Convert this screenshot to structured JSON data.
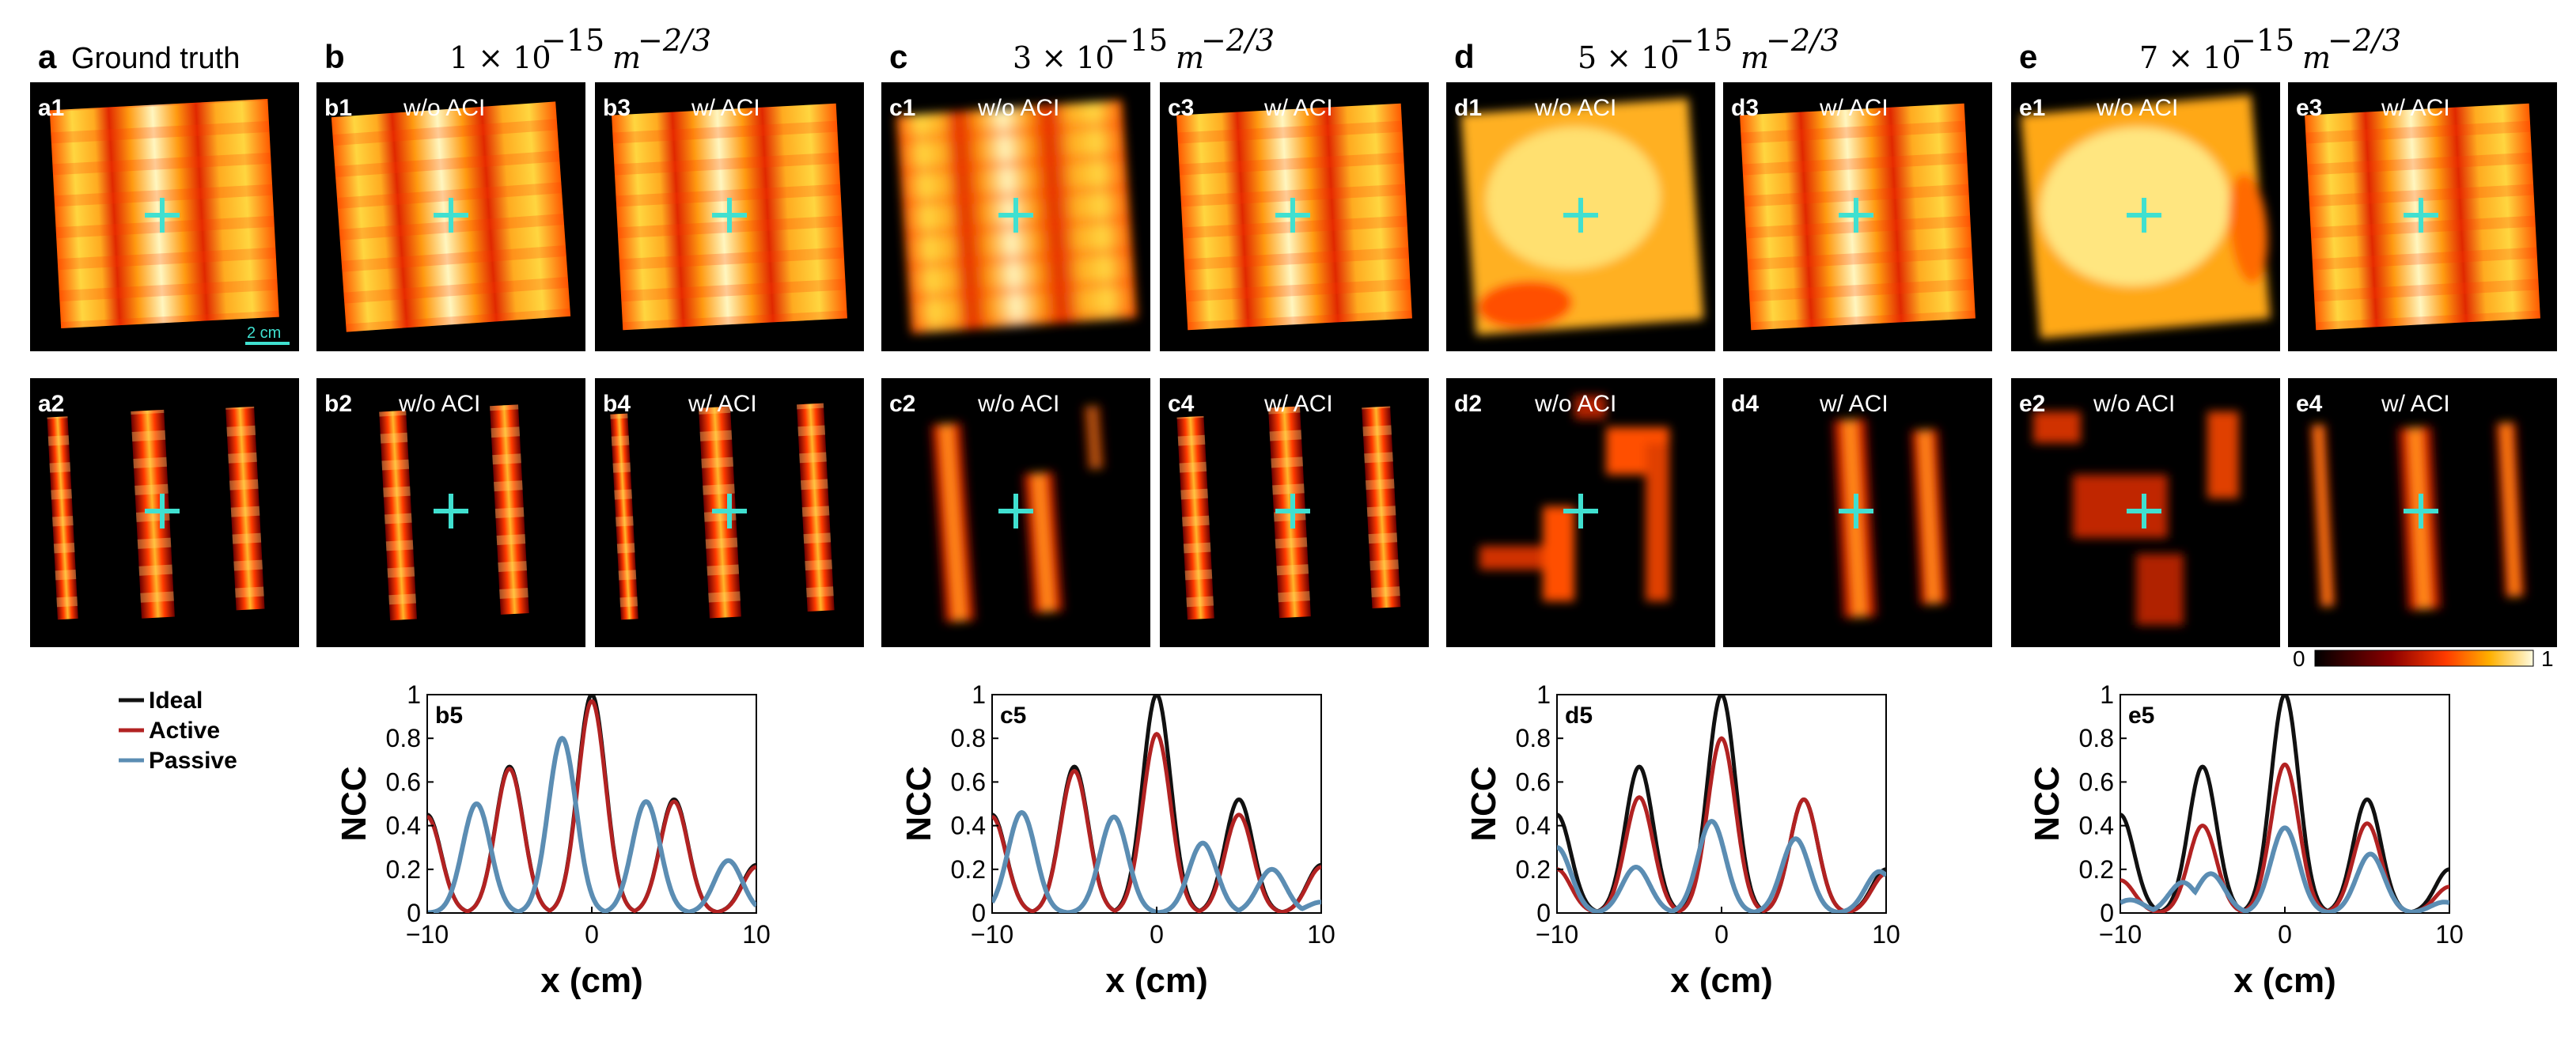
{
  "figure": {
    "panel_a": {
      "letter": "a",
      "title": "Ground truth",
      "tags": [
        "a1",
        "a2"
      ],
      "scale_bar": "2 cm"
    },
    "groups": [
      {
        "letter": "b",
        "title": "1 × 10",
        "exponent": "−15",
        "unit": "m",
        "unit_exp": "−2/3",
        "tags": [
          "b1",
          "b3",
          "b2",
          "b4"
        ],
        "plot_tag": "b5"
      },
      {
        "letter": "c",
        "title": "3 × 10",
        "exponent": "−15",
        "unit": "m",
        "unit_exp": "−2/3",
        "tags": [
          "c1",
          "c3",
          "c2",
          "c4"
        ],
        "plot_tag": "c5"
      },
      {
        "letter": "d",
        "title": "5 × 10",
        "exponent": "−15",
        "unit": "m",
        "unit_exp": "−2/3",
        "tags": [
          "d1",
          "d3",
          "d2",
          "d4"
        ],
        "plot_tag": "d5"
      },
      {
        "letter": "e",
        "title": "7 × 10",
        "exponent": "−15",
        "unit": "m",
        "unit_exp": "−2/3",
        "tags": [
          "e1",
          "e3",
          "e2",
          "e4"
        ],
        "plot_tag": "e5"
      }
    ],
    "without_label": "w/o ACI",
    "with_label": "w/ ACI",
    "colorbar": {
      "min": "0",
      "max": "1"
    },
    "legend": [
      {
        "name": "Ideal",
        "color": "#111111"
      },
      {
        "name": "Active",
        "color": "#b22222"
      },
      {
        "name": "Passive",
        "color": "#5b8db3"
      }
    ]
  },
  "chart_data": [
    {
      "type": "line",
      "title": "b5",
      "xlabel": "x (cm)",
      "ylabel": "NCC",
      "xlim": [
        -10,
        10
      ],
      "ylim": [
        0,
        1
      ],
      "xticks": [
        "-10",
        "0",
        "10"
      ],
      "yticks": [
        "0",
        "0.2",
        "0.4",
        "0.6",
        "0.8",
        "1"
      ],
      "series": [
        {
          "name": "Ideal",
          "peaks": [
            [
              -10,
              0.45
            ],
            [
              -5,
              0.67
            ],
            [
              0,
              1.0
            ],
            [
              5,
              0.52
            ],
            [
              10,
              0.22
            ]
          ]
        },
        {
          "name": "Active",
          "peaks": [
            [
              -10,
              0.44
            ],
            [
              -5,
              0.66
            ],
            [
              0,
              0.97
            ],
            [
              5,
              0.51
            ],
            [
              10,
              0.21
            ]
          ]
        },
        {
          "name": "Passive",
          "peaks": [
            [
              -7,
              0.5
            ],
            [
              -1.8,
              0.8
            ],
            [
              3.3,
              0.51
            ],
            [
              8.3,
              0.24
            ]
          ]
        }
      ]
    },
    {
      "type": "line",
      "title": "c5",
      "xlabel": "x (cm)",
      "ylabel": "NCC",
      "xlim": [
        -10,
        10
      ],
      "ylim": [
        0,
        1
      ],
      "xticks": [
        "-10",
        "0",
        "10"
      ],
      "yticks": [
        "0",
        "0.2",
        "0.4",
        "0.6",
        "0.8",
        "1"
      ],
      "series": [
        {
          "name": "Ideal",
          "peaks": [
            [
              -10,
              0.45
            ],
            [
              -5,
              0.67
            ],
            [
              0,
              1.0
            ],
            [
              5,
              0.52
            ],
            [
              10,
              0.22
            ]
          ]
        },
        {
          "name": "Active",
          "peaks": [
            [
              -10,
              0.44
            ],
            [
              -5,
              0.65
            ],
            [
              0,
              0.82
            ],
            [
              5,
              0.45
            ],
            [
              10,
              0.21
            ]
          ]
        },
        {
          "name": "Passive",
          "peaks": [
            [
              -8.2,
              0.46
            ],
            [
              -2.6,
              0.44
            ],
            [
              2.8,
              0.32
            ],
            [
              7.0,
              0.2
            ],
            [
              10,
              0.05
            ]
          ]
        }
      ]
    },
    {
      "type": "line",
      "title": "d5",
      "xlabel": "x (cm)",
      "ylabel": "NCC",
      "xlim": [
        -10,
        10
      ],
      "ylim": [
        0,
        1
      ],
      "xticks": [
        "-10",
        "0",
        "10"
      ],
      "yticks": [
        "0",
        "0.2",
        "0.4",
        "0.6",
        "0.8",
        "1"
      ],
      "series": [
        {
          "name": "Ideal",
          "peaks": [
            [
              -10,
              0.45
            ],
            [
              -5,
              0.67
            ],
            [
              0,
              1.0
            ],
            [
              5,
              0.52
            ],
            [
              10,
              0.2
            ]
          ]
        },
        {
          "name": "Active",
          "peaks": [
            [
              -10,
              0.2
            ],
            [
              -5,
              0.53
            ],
            [
              0,
              0.8
            ],
            [
              5,
              0.52
            ],
            [
              10,
              0.18
            ]
          ]
        },
        {
          "name": "Passive",
          "peaks": [
            [
              -10,
              0.3
            ],
            [
              -5.2,
              0.21
            ],
            [
              -0.6,
              0.42
            ],
            [
              4.5,
              0.34
            ],
            [
              9.6,
              0.19
            ]
          ]
        }
      ]
    },
    {
      "type": "line",
      "title": "e5",
      "xlabel": "x (cm)",
      "ylabel": "NCC",
      "xlim": [
        -10,
        10
      ],
      "ylim": [
        0,
        1
      ],
      "xticks": [
        "-10",
        "0",
        "10"
      ],
      "yticks": [
        "0",
        "0.2",
        "0.4",
        "0.6",
        "0.8",
        "1"
      ],
      "series": [
        {
          "name": "Ideal",
          "peaks": [
            [
              -10,
              0.45
            ],
            [
              -5,
              0.67
            ],
            [
              0,
              1.0
            ],
            [
              5,
              0.52
            ],
            [
              10,
              0.2
            ]
          ]
        },
        {
          "name": "Active",
          "peaks": [
            [
              -10,
              0.15
            ],
            [
              -5,
              0.4
            ],
            [
              0,
              0.68
            ],
            [
              5,
              0.41
            ],
            [
              10,
              0.12
            ]
          ]
        },
        {
          "name": "Passive",
          "peaks": [
            [
              -9.4,
              0.06
            ],
            [
              -6.2,
              0.14
            ],
            [
              -4.5,
              0.18
            ],
            [
              0,
              0.39
            ],
            [
              5.2,
              0.27
            ],
            [
              9.7,
              0.05
            ]
          ]
        }
      ]
    }
  ]
}
